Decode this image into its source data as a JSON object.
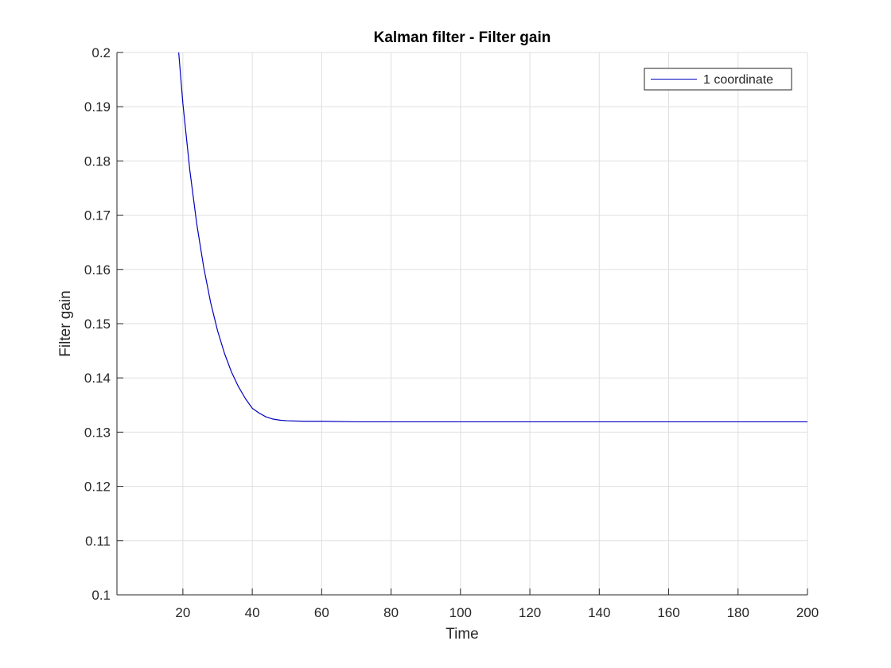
{
  "chart_data": {
    "type": "line",
    "title": "Kalman filter - Filter gain",
    "xlabel": "Time",
    "ylabel": "Filter gain",
    "xlim": [
      1,
      200
    ],
    "ylim": [
      0.1,
      0.2
    ],
    "xticks": [
      20,
      40,
      60,
      80,
      100,
      120,
      140,
      160,
      180,
      200
    ],
    "yticks": [
      0.1,
      0.11,
      0.12,
      0.13,
      0.14,
      0.15,
      0.16,
      0.17,
      0.18,
      0.19,
      0.2
    ],
    "ytick_labels": [
      "0.1",
      "0.11",
      "0.12",
      "0.13",
      "0.14",
      "0.15",
      "0.16",
      "0.17",
      "0.18",
      "0.19",
      "0.2"
    ],
    "grid": true,
    "legend_position": "top-right",
    "series": [
      {
        "name": "1 coordinate",
        "color": "#0000bf",
        "x": [
          18.8,
          20,
          22,
          24,
          26,
          28,
          30,
          32,
          34,
          36,
          38,
          40,
          42,
          44,
          46,
          48,
          50,
          55,
          60,
          70,
          80,
          100,
          120,
          140,
          160,
          180,
          200
        ],
        "y": [
          0.2,
          0.1906,
          0.1783,
          0.1684,
          0.1604,
          0.1539,
          0.1487,
          0.1445,
          0.1411,
          0.1384,
          0.1362,
          0.1344,
          0.1335,
          0.1328,
          0.1324,
          0.1322,
          0.1321,
          0.132,
          0.132,
          0.1319,
          0.1319,
          0.1319,
          0.1319,
          0.1319,
          0.1319,
          0.1319,
          0.1319
        ]
      }
    ]
  }
}
